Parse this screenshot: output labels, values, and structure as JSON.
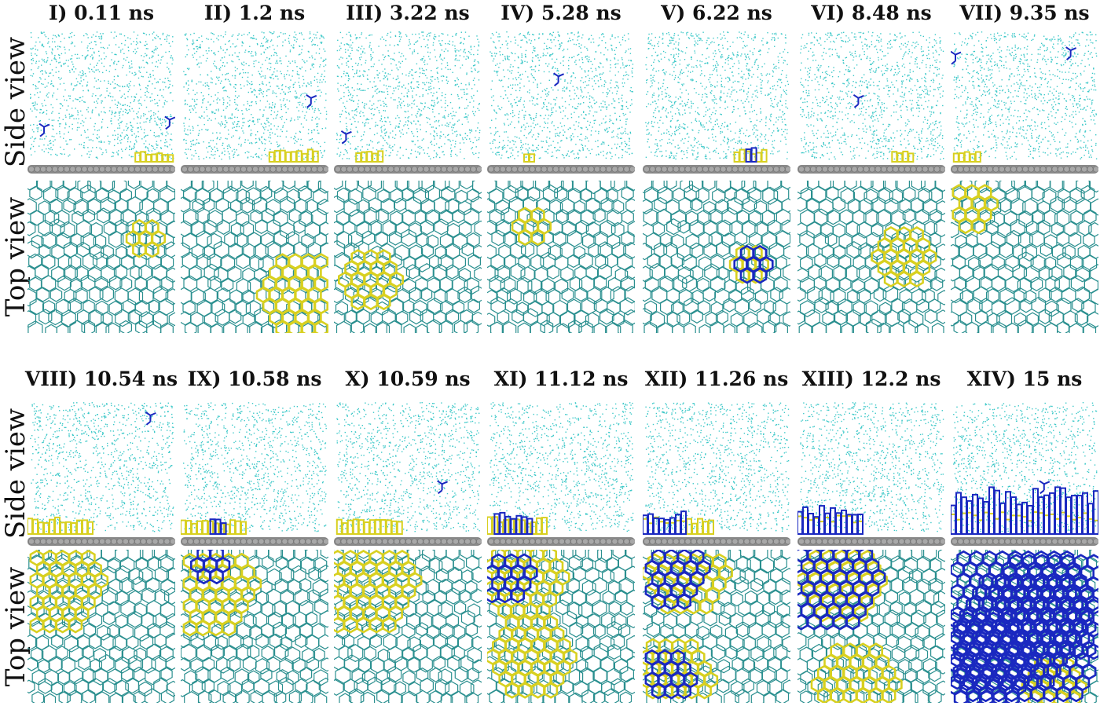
{
  "row_labels": {
    "side": "Side view",
    "top": "Top view"
  },
  "panels": [
    {
      "label": "I) 0.11 ns"
    },
    {
      "label": "II) 1.2 ns"
    },
    {
      "label": "III) 3.22 ns"
    },
    {
      "label": "IV) 5.28 ns"
    },
    {
      "label": "V) 6.22 ns"
    },
    {
      "label": "VI) 8.48 ns"
    },
    {
      "label": "VII) 9.35 ns"
    },
    {
      "label": "VIII) 10.54 ns"
    },
    {
      "label": "IX) 10.58 ns"
    },
    {
      "label": "X) 10.59 ns"
    },
    {
      "label": "XI) 11.12 ns"
    },
    {
      "label": "XII) 11.26 ns"
    },
    {
      "label": "XIII) 12.2 ns"
    },
    {
      "label": "XIV) 15 ns"
    }
  ],
  "colors": {
    "gas": "#3cc8c8",
    "network": "#2a8f8f",
    "deposit_old": "#d8d020",
    "deposit_new": "#1a28c0",
    "substrate": "#8a8a8a"
  }
}
